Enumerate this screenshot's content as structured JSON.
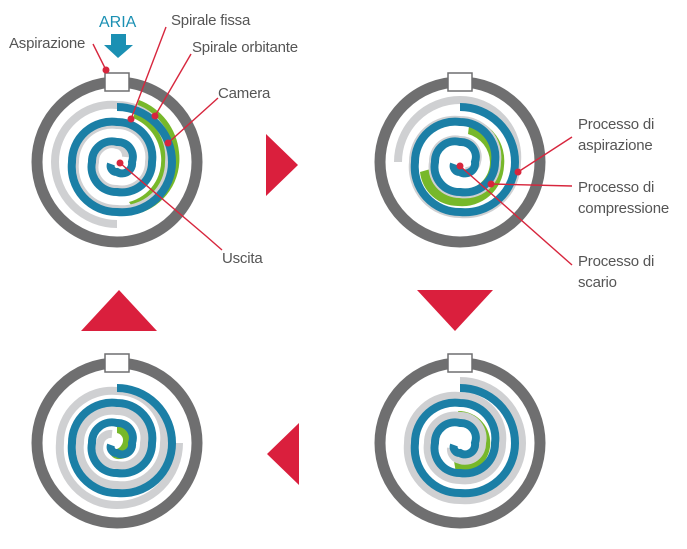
{
  "colors": {
    "casing": "#6f6f70",
    "fixed_scroll": "#1b7fa6",
    "orbiting_scroll": "#cfd0d2",
    "chamber": "#77b82a",
    "arrow": "#da1f3d",
    "air_arrow": "#1b90b3",
    "leader": "#d7263d"
  },
  "labels": {
    "air": "ARIA",
    "intake": "Aspirazione",
    "fixed_scroll": "Spirale fissa",
    "orbiting_scroll": "Spirale orbitante",
    "chamber": "Camera",
    "outlet": "Uscita",
    "suction_process": [
      "Processo di",
      "aspirazione"
    ],
    "compression_process": [
      "Processo di",
      "compressione"
    ],
    "discharge_process": [
      "Processo di",
      "scario"
    ]
  },
  "stages": [
    {
      "stage": 1,
      "chamber_fill": "outer"
    },
    {
      "stage": 2,
      "chamber_fill": "middle"
    },
    {
      "stage": 3,
      "chamber_fill": "inner"
    },
    {
      "stage": 4,
      "chamber_fill": "center"
    }
  ],
  "flow_arrows": [
    {
      "from_stage": 1,
      "to_stage": 2,
      "direction": "right"
    },
    {
      "from_stage": 2,
      "to_stage": 3,
      "direction": "down"
    },
    {
      "from_stage": 3,
      "to_stage": 4,
      "direction": "left"
    },
    {
      "from_stage": 4,
      "to_stage": 1,
      "direction": "up"
    }
  ]
}
